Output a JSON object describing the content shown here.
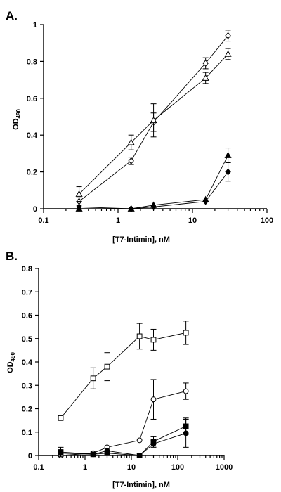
{
  "chart_data": [
    {
      "panel": "A.",
      "type": "scatter",
      "xscale": "log",
      "xlim": [
        0.1,
        100
      ],
      "ylim": [
        0,
        1
      ],
      "xticks": [
        "0.1",
        "1",
        "10",
        "100"
      ],
      "yticks": [
        "0",
        "0.2",
        "0.4",
        "0.6",
        "0.8",
        "1"
      ],
      "xlabel": "[T7-Intimin], nM",
      "ylabel": "OD490",
      "ylabel_main": "OD",
      "ylabel_sub": "490",
      "grid": false,
      "series": [
        {
          "marker": "diamond-open",
          "x": [
            0.3,
            1.5,
            3,
            15,
            30
          ],
          "y": [
            0.04,
            0.26,
            0.47,
            0.79,
            0.94
          ],
          "err": [
            0.02,
            0.02,
            0.05,
            0.03,
            0.03
          ]
        },
        {
          "marker": "triangle-open",
          "x": [
            0.3,
            1.5,
            3,
            15,
            30
          ],
          "y": [
            0.08,
            0.36,
            0.48,
            0.71,
            0.84
          ],
          "err": [
            0.04,
            0.04,
            0.09,
            0.03,
            0.03
          ]
        },
        {
          "marker": "triangle-filled",
          "x": [
            0.3,
            1.5,
            3,
            15,
            30
          ],
          "y": [
            0.0,
            0.0,
            0.02,
            0.05,
            0.29
          ],
          "err": [
            0.01,
            0.0,
            0.0,
            0.0,
            0.04
          ]
        },
        {
          "marker": "diamond-filled",
          "x": [
            0.3,
            1.5,
            3,
            15,
            30
          ],
          "y": [
            0.01,
            0.0,
            0.01,
            0.04,
            0.2
          ],
          "err": [
            0.01,
            0.0,
            0.0,
            0.0,
            0.05
          ]
        }
      ]
    },
    {
      "panel": "B.",
      "type": "scatter",
      "xscale": "log",
      "xlim": [
        0.1,
        1000
      ],
      "ylim": [
        0,
        0.8
      ],
      "xticks": [
        "0.1",
        "1",
        "10",
        "100",
        "1000"
      ],
      "yticks": [
        "0",
        "0.1",
        "0.2",
        "0.3",
        "0.4",
        "0.5",
        "0.6",
        "0.7",
        "0.8"
      ],
      "xlabel": "[T7-Intimin], nM",
      "ylabel": "OD490",
      "ylabel_main": "OD",
      "ylabel_sub": "490",
      "grid": false,
      "series": [
        {
          "marker": "square-open",
          "x": [
            0.3,
            1.5,
            3,
            15,
            30,
            150
          ],
          "y": [
            0.16,
            0.33,
            0.38,
            0.51,
            0.495,
            0.525
          ],
          "err": [
            0.0,
            0.045,
            0.06,
            0.055,
            0.045,
            0.05
          ]
        },
        {
          "marker": "circle-open",
          "x": [
            0.3,
            1.5,
            3,
            15,
            30,
            150
          ],
          "y": [
            0.0,
            0.01,
            0.035,
            0.065,
            0.24,
            0.275
          ],
          "err": [
            0.0,
            0.0,
            0.0,
            0.0,
            0.085,
            0.035
          ]
        },
        {
          "marker": "square-filled",
          "x": [
            0.3,
            1.5,
            3,
            15,
            30,
            150
          ],
          "y": [
            0.015,
            0.005,
            0.01,
            0.0,
            0.06,
            0.125
          ],
          "err": [
            0.02,
            0.0,
            0.0,
            0.0,
            0.02,
            0.035
          ]
        },
        {
          "marker": "circle-filled",
          "x": [
            0.3,
            1.5,
            3,
            15,
            30,
            150
          ],
          "y": [
            0.01,
            0.005,
            0.02,
            0.0,
            0.05,
            0.095
          ],
          "err": [
            0.01,
            0.0,
            0.0,
            0.0,
            0.015,
            0.06
          ]
        }
      ]
    }
  ]
}
